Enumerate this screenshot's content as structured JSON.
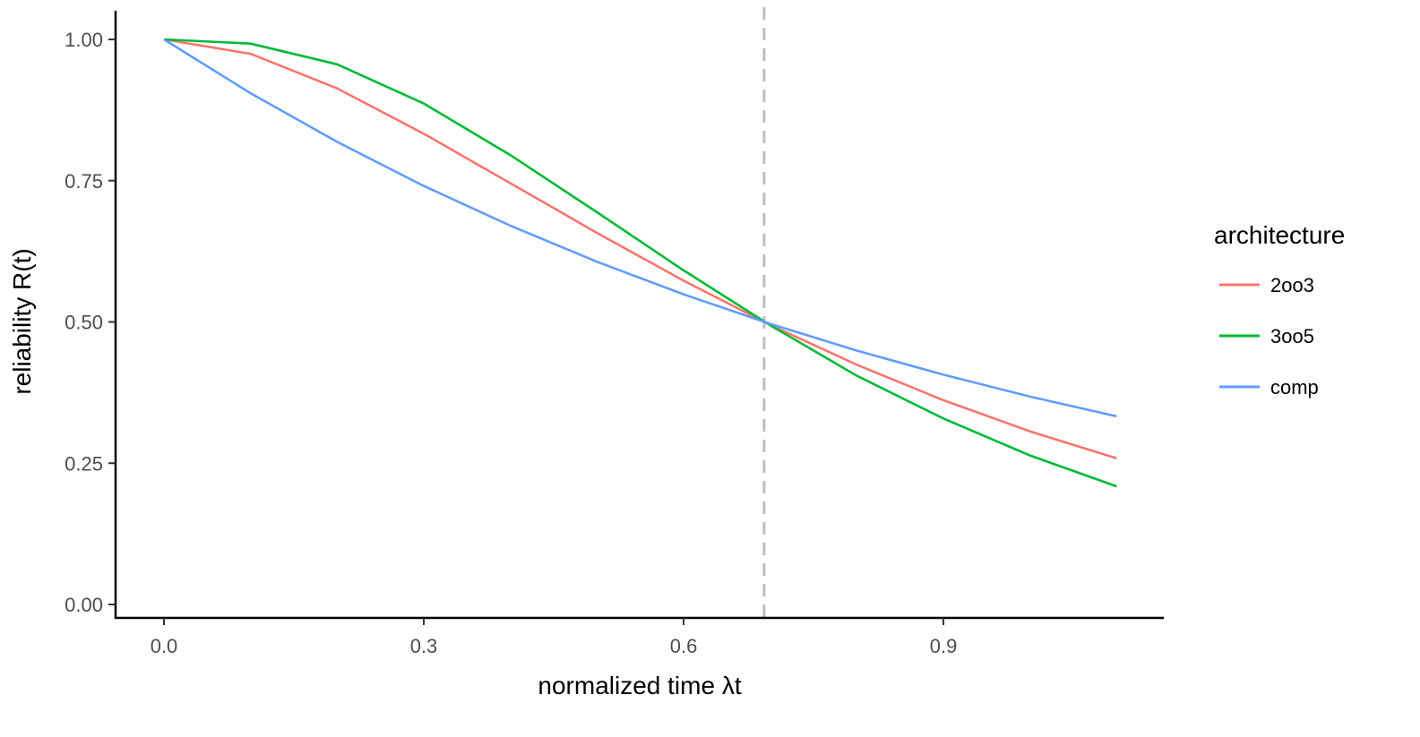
{
  "chart_data": {
    "type": "line",
    "title": "",
    "xlabel": "normalized time λt",
    "ylabel": "reliability R(t)",
    "xlim": [
      -0.056,
      1.153
    ],
    "ylim": [
      0,
      1
    ],
    "x_ticks": [
      "0.0",
      "0.3",
      "0.6",
      "0.9"
    ],
    "x_tick_values": [
      0,
      0.3,
      0.6,
      0.9
    ],
    "y_ticks": [
      "0.00",
      "0.25",
      "0.50",
      "0.75",
      "1.00"
    ],
    "y_tick_values": [
      0,
      0.25,
      0.5,
      0.75,
      1.0
    ],
    "grid": false,
    "vline": {
      "x": 0.693,
      "style": "dashed",
      "color": "#bebebe"
    },
    "legend": {
      "title": "architecture",
      "placement": "right"
    },
    "x": [
      0,
      0.1,
      0.2,
      0.3,
      0.4,
      0.5,
      0.6,
      0.7,
      0.8,
      0.9,
      1.0,
      1.1
    ],
    "series": [
      {
        "name": "2oo3",
        "color": "#F8766D",
        "values": [
          1,
          0.9745,
          0.9133,
          0.8332,
          0.7455,
          0.6575,
          0.573,
          0.4948,
          0.4243,
          0.3615,
          0.3063,
          0.2586
        ]
      },
      {
        "name": "3oo5",
        "color": "#00BA38",
        "values": [
          1,
          0.9925,
          0.9559,
          0.8866,
          0.7953,
          0.6941,
          0.5913,
          0.4942,
          0.4048,
          0.3291,
          0.2637,
          0.2091
        ]
      },
      {
        "name": "comp",
        "color": "#619CFF",
        "values": [
          1,
          0.9048,
          0.8187,
          0.7408,
          0.6703,
          0.6065,
          0.5488,
          0.4966,
          0.4493,
          0.4066,
          0.3679,
          0.3329
        ]
      }
    ]
  }
}
